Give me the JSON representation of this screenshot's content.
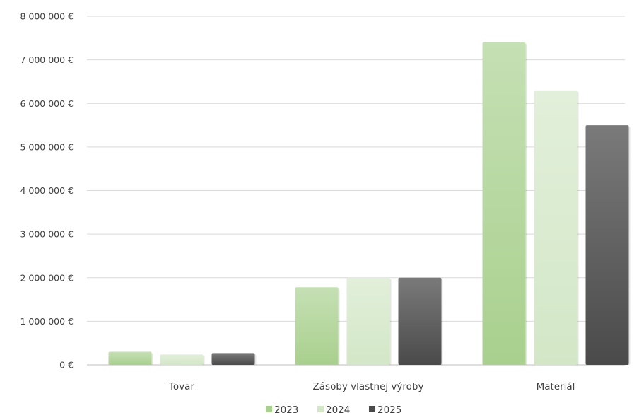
{
  "chart_data": {
    "type": "bar",
    "title": "",
    "xlabel": "",
    "ylabel": "",
    "categories": [
      "Tovar",
      "Zásoby vlastnej výroby",
      "Materiál"
    ],
    "series": [
      {
        "name": "2023",
        "values": [
          300000,
          1780000,
          7400000
        ]
      },
      {
        "name": "2024",
        "values": [
          240000,
          2000000,
          6300000
        ]
      },
      {
        "name": "2025",
        "values": [
          270000,
          2000000,
          5500000
        ]
      }
    ],
    "ylim": [
      0,
      8000000
    ],
    "yticks": [
      0,
      1000000,
      2000000,
      3000000,
      4000000,
      5000000,
      6000000,
      7000000,
      8000000
    ],
    "ytick_labels": [
      "0 €",
      "1 000 000 €",
      "2 000 000 €",
      "3 000 000 €",
      "4 000 000 €",
      "5 000 000 €",
      "6 000 000 €",
      "7 000 000 €",
      "8 000 000 €"
    ],
    "grid": true,
    "legend_position": "bottom",
    "colors": {
      "2023": {
        "top": "#c5e0b4",
        "bottom": "#a9d08e"
      },
      "2024": {
        "top": "#e2efda",
        "bottom": "#d3e7c7"
      },
      "2025": {
        "top": "#7a7a7a",
        "bottom": "#4a4a4a"
      }
    }
  }
}
